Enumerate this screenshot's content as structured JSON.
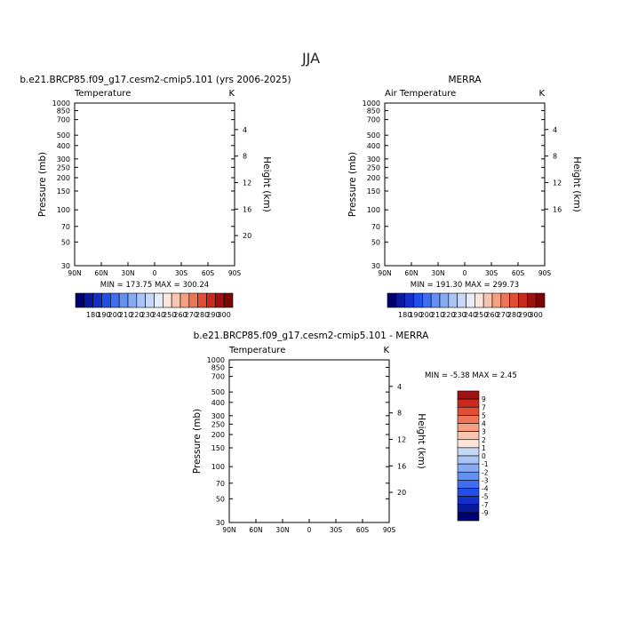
{
  "figure_title": "JJA",
  "colors": {
    "full": [
      "#00006e",
      "#0a1a9e",
      "#1530c8",
      "#2050e6",
      "#3f6fee",
      "#6391f2",
      "#86aaf4",
      "#a9c4f7",
      "#c6d7f8",
      "#e5edfb",
      "#fce5da",
      "#f8c5ae",
      "#f4a081",
      "#ee7555",
      "#e04e33",
      "#c82a1c",
      "#a01010",
      "#7a0606"
    ],
    "diff": [
      "#00006e",
      "#0a1a9e",
      "#1530c8",
      "#2050e6",
      "#3f6fee",
      "#6391f2",
      "#86aaf4",
      "#a9c4f7",
      "#c6d7f8",
      "#fce5da",
      "#f8c5ae",
      "#f4a081",
      "#ee7555",
      "#e04e33",
      "#c82a1c",
      "#a01010"
    ]
  },
  "chart_data": [
    {
      "type": "heatmap",
      "panel": "model",
      "title": "b.e21.BRCP85.f09_g17.cesm2-cmip5.101  (yrs 2006-2025)",
      "left_label": "Temperature",
      "right_label": "K",
      "xlabel": "",
      "ylabel": "Pressure (mb)",
      "y2label": "Height (km)",
      "xticks": [
        "90N",
        "60N",
        "30N",
        "0",
        "30S",
        "60S",
        "90S"
      ],
      "xtick_values": [
        90,
        60,
        30,
        0,
        -30,
        -60,
        -90
      ],
      "yticks": [
        30,
        50,
        70,
        100,
        150,
        200,
        250,
        300,
        400,
        500,
        700,
        850,
        1000
      ],
      "y2ticks": [
        4,
        8,
        12,
        16,
        20
      ],
      "ylim": [
        1000,
        30
      ],
      "data_top_mb": 30,
      "stats": "MIN = 173.75   MAX = 300.24",
      "min": 173.75,
      "max": 300.24,
      "levels": [
        180,
        185,
        190,
        195,
        200,
        205,
        210,
        215,
        220,
        230,
        240,
        250,
        260,
        270,
        280,
        290,
        300
      ],
      "colorbar_labels": [
        "180",
        "190",
        "200",
        "210",
        "220",
        "230",
        "240",
        "250",
        "260",
        "270",
        "280",
        "290",
        "300"
      ]
    },
    {
      "type": "heatmap",
      "panel": "obs",
      "title": "MERRA",
      "left_label": "Air Temperature",
      "right_label": "K",
      "xlabel": "",
      "ylabel": "Pressure (mb)",
      "y2label": "Height (km)",
      "xticks": [
        "90N",
        "60N",
        "30N",
        "0",
        "30S",
        "60S",
        "90S"
      ],
      "xtick_values": [
        90,
        60,
        30,
        0,
        -30,
        -60,
        -90
      ],
      "yticks": [
        30,
        50,
        70,
        100,
        150,
        200,
        250,
        300,
        400,
        500,
        700,
        850,
        1000
      ],
      "y2ticks": [
        4,
        8,
        12,
        16
      ],
      "ylim": [
        1000,
        30
      ],
      "data_top_mb": 100,
      "stats": "MIN = 191.30   MAX = 299.73",
      "min": 191.3,
      "max": 299.73,
      "levels": [
        180,
        185,
        190,
        195,
        200,
        205,
        210,
        215,
        220,
        230,
        240,
        250,
        260,
        270,
        280,
        290,
        300
      ],
      "colorbar_labels": [
        "180",
        "190",
        "200",
        "210",
        "220",
        "230",
        "240",
        "250",
        "260",
        "270",
        "280",
        "290",
        "300"
      ]
    },
    {
      "type": "heatmap",
      "panel": "diff",
      "title": "b.e21.BRCP85.f09_g17.cesm2-cmip5.101 - MERRA",
      "left_label": "Temperature",
      "right_label": "K",
      "xlabel": "",
      "ylabel": "Pressure (mb)",
      "y2label": "Height (km)",
      "xticks": [
        "90N",
        "60N",
        "30N",
        "0",
        "30S",
        "60S",
        "90S"
      ],
      "xtick_values": [
        90,
        60,
        30,
        0,
        -30,
        -60,
        -90
      ],
      "yticks": [
        30,
        50,
        70,
        100,
        150,
        200,
        250,
        300,
        400,
        500,
        700,
        850,
        1000
      ],
      "y2ticks": [
        4,
        8,
        12,
        16,
        20
      ],
      "ylim": [
        1000,
        30
      ],
      "data_top_mb": 100,
      "stats": "MIN =   -5.38   MAX =    2.45",
      "min": -5.38,
      "max": 2.45,
      "levels": [
        -9,
        -7,
        -5,
        -4,
        -3,
        -2,
        -1,
        0,
        1,
        2,
        3,
        4,
        5,
        7,
        9
      ],
      "colorbar_labels": [
        "-9",
        "-7",
        "-5",
        "-4",
        "-3",
        "-2",
        "-1",
        "0",
        "1",
        "2",
        "3",
        "4",
        "5",
        "7",
        "9"
      ]
    }
  ]
}
